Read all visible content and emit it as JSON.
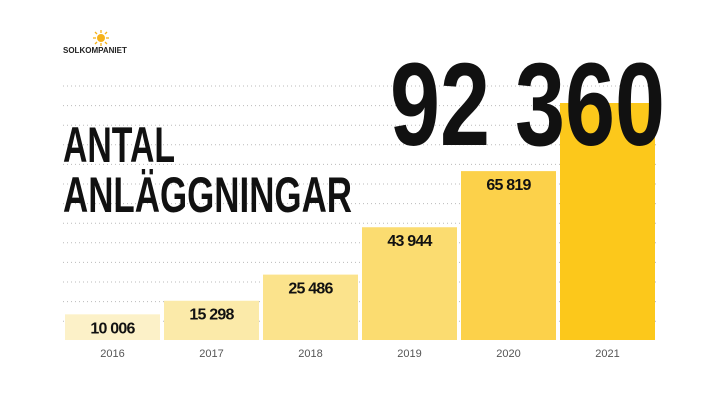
{
  "brand": "SOLKOMPANIET",
  "chart_data": {
    "type": "bar",
    "title": [
      "ANTAL",
      "ANLÄGGNINGAR"
    ],
    "categories": [
      "2016",
      "2017",
      "2018",
      "2019",
      "2020",
      "2021"
    ],
    "values": [
      10006,
      15298,
      25486,
      43944,
      65819,
      92360
    ],
    "value_labels": [
      "10 006",
      "15 298",
      "25 486",
      "43 944",
      "65 819",
      "92 360"
    ],
    "colors": [
      "#fcf1c8",
      "#fbeaa9",
      "#fbe38c",
      "#fbdc70",
      "#fcd14a",
      "#fcc81b"
    ],
    "ylim": [
      0,
      100000
    ]
  }
}
